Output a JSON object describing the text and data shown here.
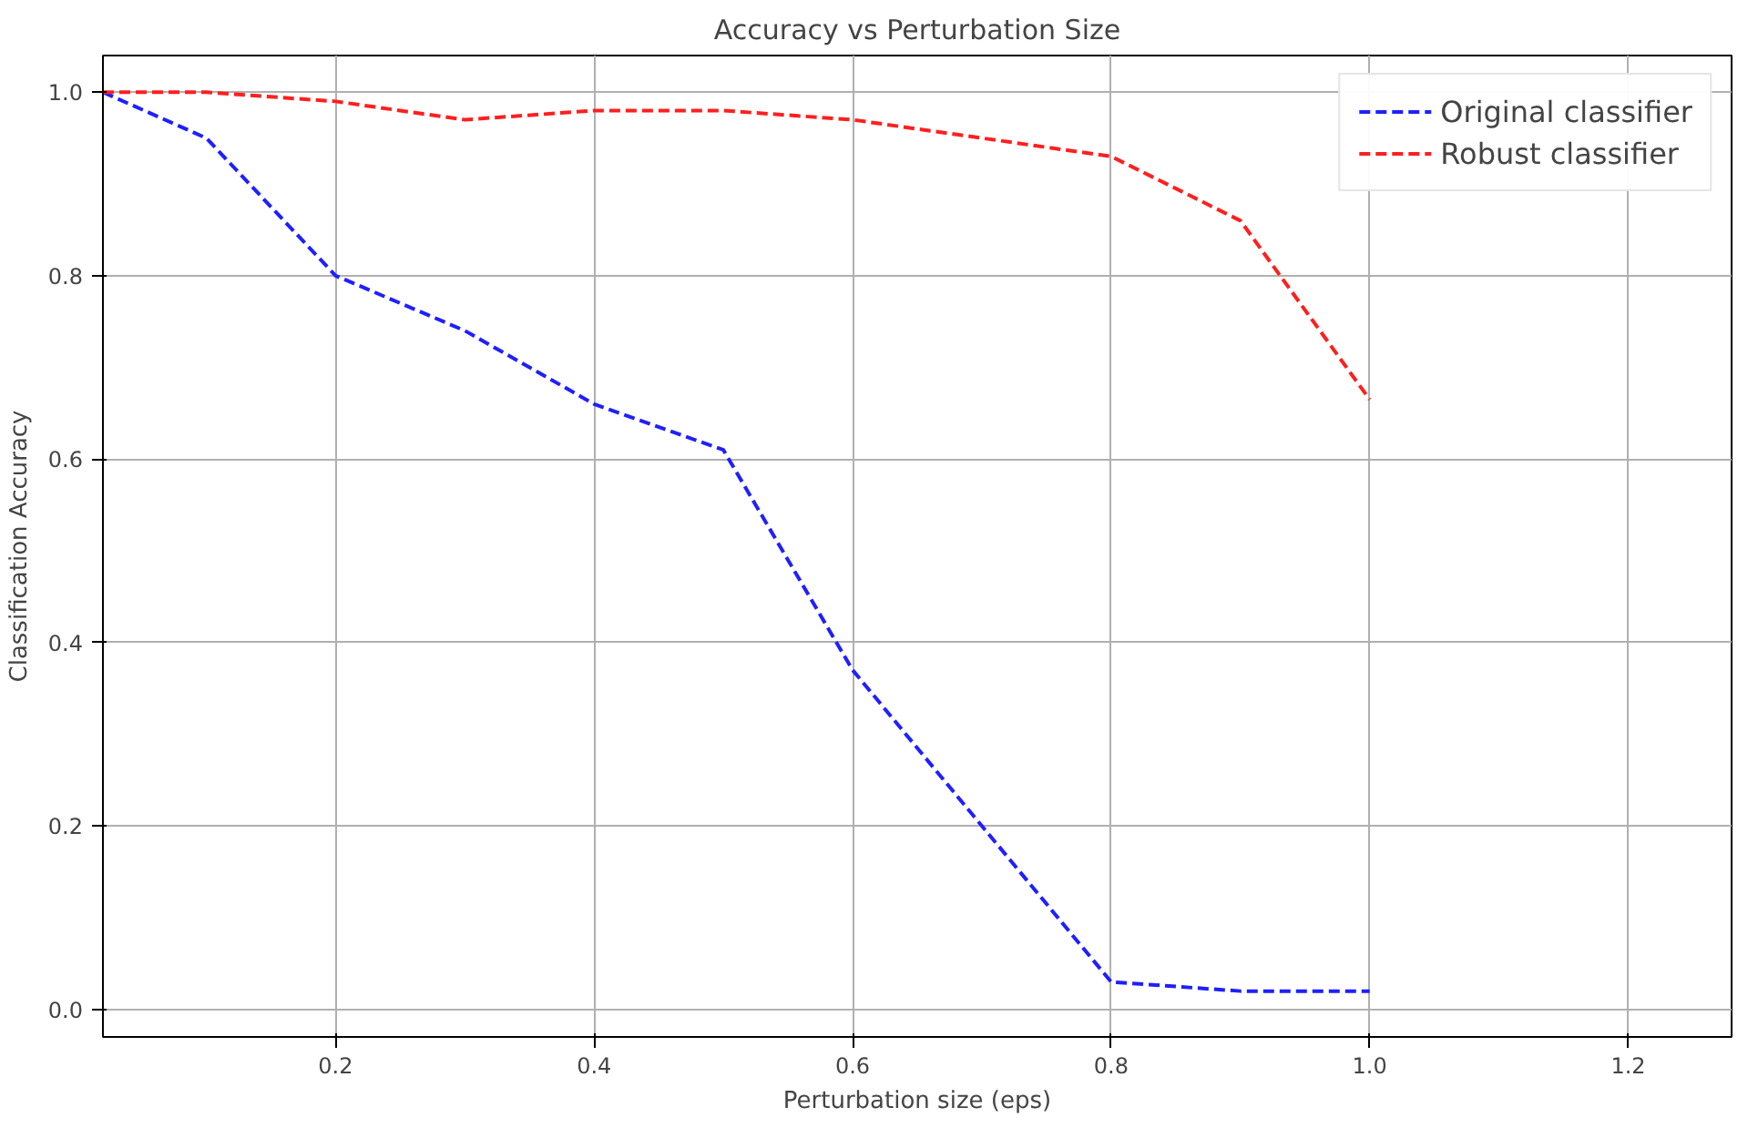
{
  "chart_data": {
    "type": "line",
    "title": "Accuracy vs Perturbation Size",
    "xlabel": "Perturbation size (eps)",
    "ylabel": "Classification Accuracy",
    "x": [
      0.02,
      0.1,
      0.2,
      0.3,
      0.4,
      0.5,
      0.6,
      0.7,
      0.8,
      0.9,
      1.0
    ],
    "series": [
      {
        "name": "Original classifier",
        "color": "#1f1fff",
        "values": [
          1.0,
          0.95,
          0.8,
          0.74,
          0.66,
          0.61,
          0.37,
          0.2,
          0.03,
          0.02,
          0.02
        ]
      },
      {
        "name": "Robust classifier",
        "color": "#ff1f1f",
        "values": [
          1.0,
          1.0,
          0.99,
          0.97,
          0.98,
          0.98,
          0.97,
          0.95,
          0.93,
          0.86,
          0.665
        ]
      }
    ],
    "xlim": [
      0.02,
      1.28
    ],
    "ylim": [
      -0.03,
      1.04
    ],
    "xticks": [
      0.2,
      0.4,
      0.6,
      0.8,
      {
        "value": 1,
        "label": "1.0"
      },
      1.2
    ],
    "yticks": [
      {
        "value": 0,
        "label": "0.0"
      },
      0.2,
      0.4,
      0.6,
      0.8,
      {
        "value": 1,
        "label": "1.0"
      }
    ],
    "grid": true,
    "legend": "top right",
    "line_style": "dashed",
    "marker": "none"
  }
}
